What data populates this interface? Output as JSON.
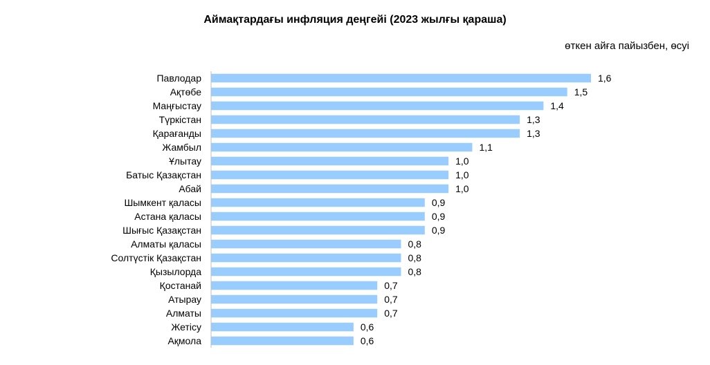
{
  "chart_data": {
    "type": "bar",
    "orientation": "horizontal",
    "title": "Аймақтардағы инфляция деңгейі (2023 жылғы қараша)",
    "subtitle": "өткен айға пайызбен, өсуі",
    "categories": [
      "Павлодар",
      "Ақтөбе",
      "Маңғыстау",
      "Түркістан",
      "Қарағанды",
      "Жамбыл",
      "Ұлытау",
      "Батыс Қазақстан",
      "Абай",
      "Шымкент қаласы",
      "Астана қаласы",
      "Шығыс Қазақстан",
      "Алматы қаласы",
      "Солтүстік Қазақстан",
      "Қызылорда",
      "Қостанай",
      "Атырау",
      "Алматы",
      "Жетісу",
      "Ақмола"
    ],
    "values": [
      1.6,
      1.5,
      1.4,
      1.3,
      1.3,
      1.1,
      1.0,
      1.0,
      1.0,
      0.9,
      0.9,
      0.9,
      0.8,
      0.8,
      0.8,
      0.7,
      0.7,
      0.7,
      0.6,
      0.6
    ],
    "value_labels": [
      "1,6",
      "1,5",
      "1,4",
      "1,3",
      "1,3",
      "1,1",
      "1,0",
      "1,0",
      "1,0",
      "0,9",
      "0,9",
      "0,9",
      "0,8",
      "0,8",
      "0,8",
      "0,7",
      "0,7",
      "0,7",
      "0,6",
      "0,6"
    ],
    "xlim": [
      0,
      1.6
    ],
    "grid": false,
    "legend": "none",
    "bar_color": "#99CCFF",
    "axis_color": "#BFBFBF"
  }
}
